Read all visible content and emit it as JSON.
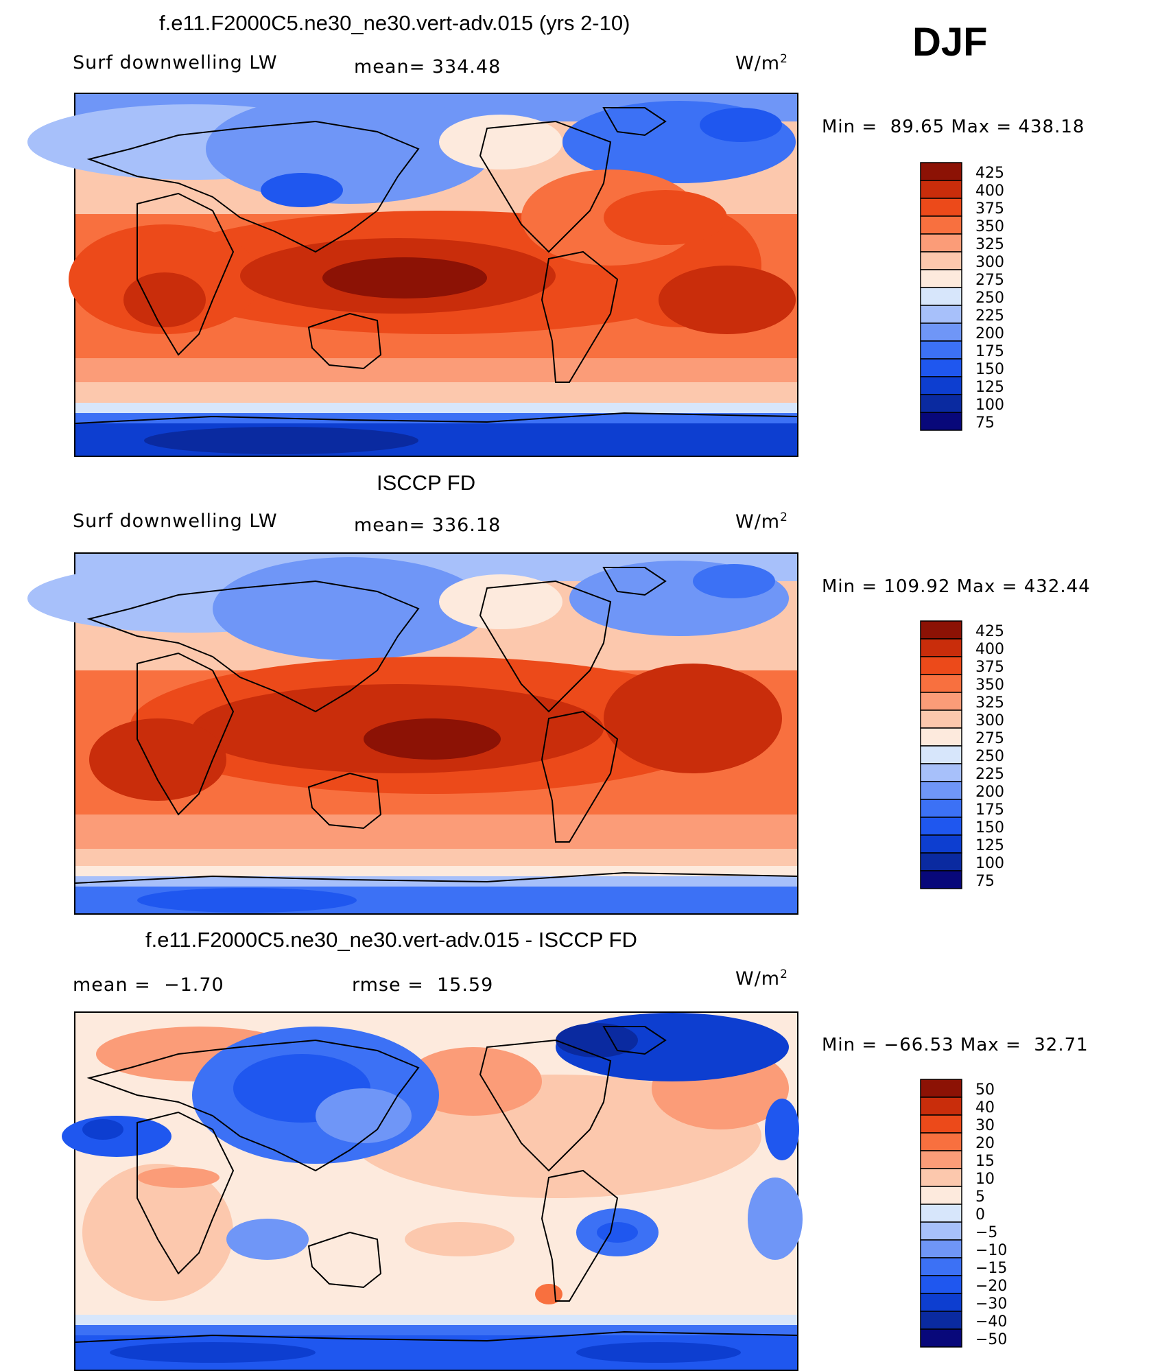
{
  "page": {
    "season_label": "DJF"
  },
  "colors": {
    "abs_scale": [
      "#08087a",
      "#0a2aa0",
      "#0d3ed0",
      "#1f57ef",
      "#3c71f5",
      "#6f96f7",
      "#a7c0fa",
      "#d7e6fb",
      "#fdeadd",
      "#fcc8ad",
      "#fb9c78",
      "#f8703f",
      "#ec4a1a",
      "#c92d0b",
      "#8c1205"
    ],
    "diff_scale": [
      "#08087a",
      "#0a2aa0",
      "#0d3ed0",
      "#1f57ef",
      "#3c71f5",
      "#6f96f7",
      "#a7c0fa",
      "#d7e6fb",
      "#fdeadd",
      "#fcc8ad",
      "#fb9c78",
      "#f8703f",
      "#ec4a1a",
      "#c92d0b",
      "#8c1205"
    ],
    "coastline": "#000000"
  },
  "panels": [
    {
      "title": "f.e11.F2000C5.ne30_ne30.vert-adv.015 (yrs 2-10)",
      "left_label": "Surf downwelling LW",
      "center_label": "mean= 334.48",
      "units": "W/m",
      "units_sup": "2",
      "minmax": "Min =  89.65 Max = 438.18",
      "legend_labels": [
        "425",
        "400",
        "375",
        "350",
        "325",
        "300",
        "275",
        "250",
        "225",
        "200",
        "175",
        "150",
        "125",
        "100",
        "75"
      ]
    },
    {
      "title": "ISCCP FD",
      "left_label": "Surf downwelling LW",
      "center_label": "mean= 336.18",
      "units": "W/m",
      "units_sup": "2",
      "minmax": "Min = 109.92 Max = 432.44",
      "legend_labels": [
        "425",
        "400",
        "375",
        "350",
        "325",
        "300",
        "275",
        "250",
        "225",
        "200",
        "175",
        "150",
        "125",
        "100",
        "75"
      ]
    },
    {
      "title": "f.e11.F2000C5.ne30_ne30.vert-adv.015 - ISCCP FD",
      "left_label": "mean =  −1.70",
      "center_label": "rmse =  15.59",
      "units": "W/m",
      "units_sup": "2",
      "minmax": "Min = −66.53 Max =  32.71",
      "legend_labels": [
        "50",
        "40",
        "30",
        "20",
        "15",
        "10",
        "5",
        "0",
        "−5",
        "−10",
        "−15",
        "−20",
        "−30",
        "−40",
        "−50"
      ]
    }
  ]
}
